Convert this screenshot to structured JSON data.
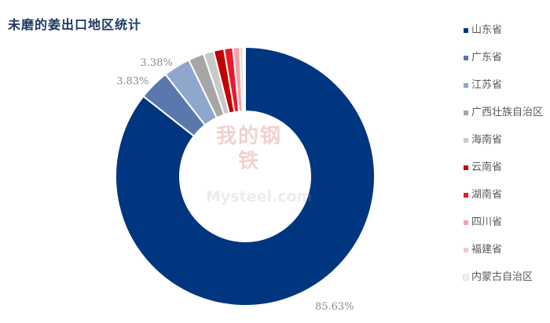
{
  "chart_data": {
    "type": "pie",
    "variant": "donut",
    "title": "未磨的姜出口地区统计",
    "legend_position": "right",
    "slices": [
      {
        "name": "山东省",
        "value": 85.63,
        "label": "85.63%",
        "color": "#003580"
      },
      {
        "name": "广东省",
        "value": 3.83,
        "label": "3.83%",
        "color": "#5a78ad"
      },
      {
        "name": "江苏省",
        "value": 3.38,
        "label": "3.38%",
        "color": "#8fa7cc"
      },
      {
        "name": "广西壮族自治区",
        "value": 1.95,
        "label": "",
        "color": "#a6a6a6"
      },
      {
        "name": "海南省",
        "value": 1.3,
        "label": "",
        "color": "#c9c9c9"
      },
      {
        "name": "云南省",
        "value": 1.3,
        "label": "",
        "color": "#c00000"
      },
      {
        "name": "湖南省",
        "value": 1.1,
        "label": "",
        "color": "#e8192c"
      },
      {
        "name": "四川省",
        "value": 0.85,
        "label": "",
        "color": "#f4a0a8"
      },
      {
        "name": "福建省",
        "value": 0.4,
        "label": "",
        "color": "#f6c9cd"
      },
      {
        "name": "内蒙古自治区",
        "value": 0.26,
        "label": "",
        "color": "#f2f2f2"
      }
    ]
  },
  "watermark": {
    "top": "我的钢铁",
    "bottom": "Mysteel.com"
  }
}
